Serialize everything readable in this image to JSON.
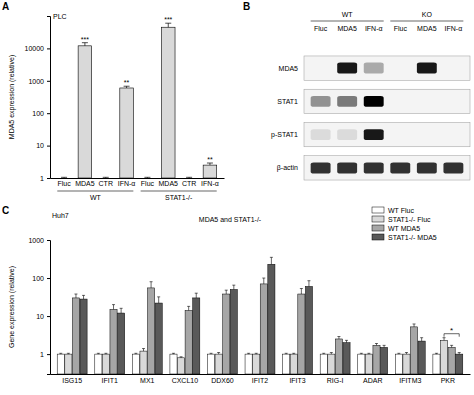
{
  "chart_data": [
    {
      "type": "bar",
      "panel": "A",
      "title": "PLC",
      "categories": [
        "Fluc",
        "MDA5",
        "CTR",
        "IFN-α",
        "Fluc",
        "MDA5",
        "CTR",
        "IFN-α"
      ],
      "groups": [
        {
          "label": "WT",
          "size": 4
        },
        {
          "label": "STAT1-/-",
          "size": 4
        }
      ],
      "values": [
        1,
        12000,
        1,
        600,
        1,
        45000,
        1,
        2.5
      ],
      "errors": [
        0.05,
        3000,
        0.05,
        80,
        0.05,
        15000,
        0.05,
        0.4
      ],
      "significance": [
        null,
        "***",
        null,
        "**",
        null,
        "***",
        null,
        "**"
      ],
      "color": "#d9d9d9",
      "ylabel": "MDA5 expression (relative)",
      "log": "y",
      "ylim": [
        1,
        100000
      ],
      "yticks": [
        1,
        10,
        100,
        1000,
        10000
      ]
    },
    {
      "type": "blot",
      "panel": "B",
      "groups": [
        {
          "label": "WT",
          "size": 3
        },
        {
          "label": "KO",
          "size": 3
        }
      ],
      "lanes": [
        "Fluc",
        "MDA5",
        "IFN-α",
        "Fluc",
        "MDA5",
        "IFN-α"
      ],
      "rows": [
        "MDA5",
        "STAT1",
        "p-STAT1",
        "β-actin"
      ],
      "bands": [
        [
          0,
          0.9,
          0.3,
          0,
          0.9,
          0
        ],
        [
          0.4,
          0.5,
          1.0,
          0,
          0,
          0
        ],
        [
          0.1,
          0.1,
          0.9,
          0,
          0,
          0
        ],
        [
          0.8,
          0.8,
          0.8,
          0.8,
          0.8,
          0.8
        ]
      ]
    },
    {
      "type": "bar",
      "panel": "C",
      "subtitle": "Huh7",
      "title": "MDA5 and STAT1-/-",
      "categories": [
        "ISG15",
        "IFIT1",
        "MX1",
        "CXCL10",
        "DDX60",
        "IFIT2",
        "IFIT3",
        "RIG-I",
        "ADAR",
        "IFITM3",
        "PKR"
      ],
      "series": [
        {
          "name": "WT Fluc",
          "color": "#ffffff",
          "values": [
            1,
            1,
            1,
            1,
            1,
            1,
            1,
            1,
            1,
            1,
            1
          ],
          "errors": [
            0.05,
            0.05,
            0.05,
            0.05,
            0.05,
            0.05,
            0.05,
            0.05,
            0.05,
            0.05,
            0.05
          ]
        },
        {
          "name": "STAT1-/- Fluc",
          "color": "#d9d9d9",
          "values": [
            1,
            1,
            1.2,
            0.8,
            1,
            1,
            1,
            1,
            1,
            1,
            2.3
          ],
          "errors": [
            0.05,
            0.05,
            0.2,
            0.05,
            0.1,
            0.05,
            0.05,
            0.1,
            0.05,
            0.1,
            0.4
          ]
        },
        {
          "name": "WT MDA5",
          "color": "#a6a6a6",
          "values": [
            30,
            15,
            55,
            14,
            38,
            70,
            38,
            2.5,
            1.7,
            5.2,
            1.5
          ],
          "errors": [
            8,
            5,
            25,
            4,
            10,
            30,
            15,
            0.4,
            0.2,
            1,
            0.2
          ]
        },
        {
          "name": "STAT1-/- MDA5",
          "color": "#595959",
          "values": [
            28,
            12,
            22,
            30,
            50,
            230,
            60,
            2,
            1.5,
            2.2,
            1
          ],
          "errors": [
            7,
            4,
            10,
            10,
            15,
            120,
            25,
            0.3,
            0.2,
            0.5,
            0.1
          ]
        }
      ],
      "annotations": [
        {
          "text": "*",
          "category": 10,
          "series": [
            1,
            3
          ]
        }
      ],
      "ylabel": "Gene expression (relative)",
      "log": "y",
      "ylim": [
        0.3,
        1000
      ],
      "yticks": [
        1,
        10,
        100,
        1000
      ],
      "legend": "upper right"
    }
  ]
}
